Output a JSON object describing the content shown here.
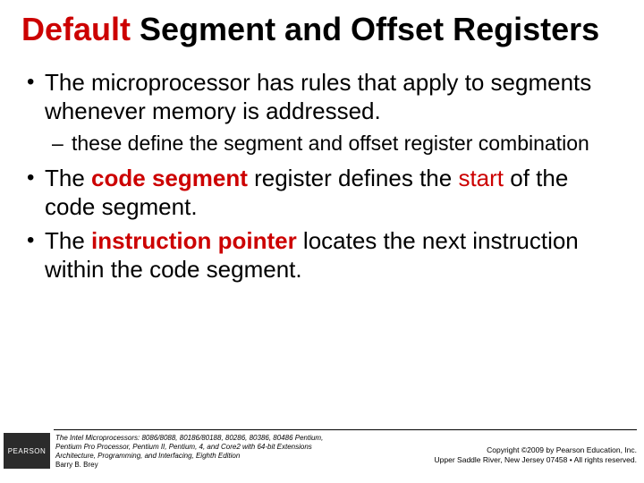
{
  "title": {
    "parts": [
      {
        "text": "Default",
        "red": true
      },
      {
        "text": " Segment and Offset Registers",
        "red": false
      }
    ],
    "fontsize": 36,
    "red_color": "#cc0000",
    "black_color": "#000000"
  },
  "bullets": [
    {
      "level": 1,
      "runs": [
        {
          "t": "The microprocessor has rules that apply to segments whenever memory is addressed."
        }
      ]
    },
    {
      "level": 2,
      "runs": [
        {
          "t": "these define the segment and offset register combination"
        }
      ]
    },
    {
      "level": 1,
      "runs": [
        {
          "t": "The "
        },
        {
          "t": "code segment",
          "bold": true,
          "red": true
        },
        {
          "t": " register defines the "
        },
        {
          "t": "start",
          "red": true
        },
        {
          "t": " of the code segment."
        }
      ]
    },
    {
      "level": 1,
      "runs": [
        {
          "t": "The "
        },
        {
          "t": "instruction pointer",
          "bold": true,
          "red": true
        },
        {
          "t": " locates the next instruction within the code segment."
        }
      ]
    }
  ],
  "footer": {
    "logo_text": "PEARSON",
    "book": {
      "title": "The Intel Microprocessors: 8086/8088, 80186/80188, 80286, 80386, 80486 Pentium,",
      "subtitle": "Pentium Pro Processor, Pentium II, Pentium, 4, and Core2 with 64-bit Extensions",
      "line3": "Architecture, Programming, and Interfacing, Eighth Edition",
      "author": "Barry B. Brey"
    },
    "copyright": {
      "line1": "Copyright ©2009 by Pearson Education, Inc.",
      "line2": "Upper Saddle River, New Jersey 07458 • All rights reserved."
    }
  },
  "colors": {
    "background": "#ffffff",
    "text": "#000000",
    "accent": "#cc0000",
    "logo_bg": "#2b2b2b"
  }
}
